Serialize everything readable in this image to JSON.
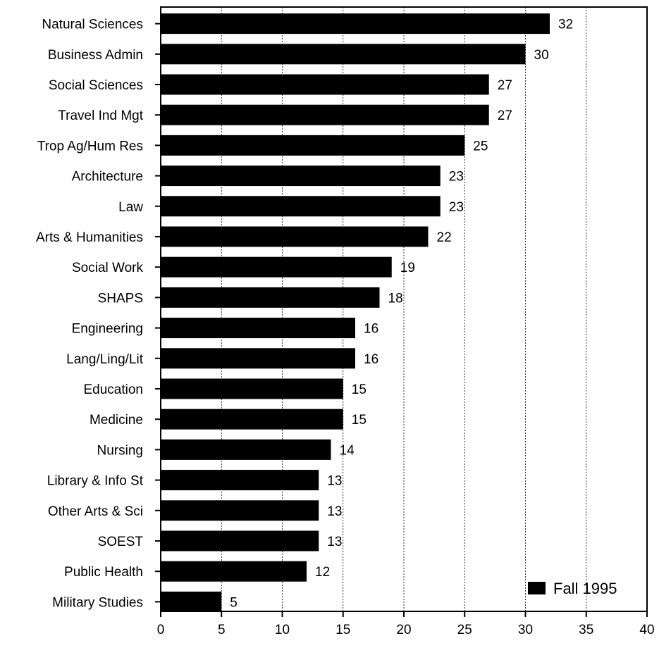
{
  "chart_data": {
    "type": "bar",
    "orientation": "horizontal",
    "categories": [
      "Natural Sciences",
      "Business Admin",
      "Social Sciences",
      "Travel Ind Mgt",
      "Trop Ag/Hum Res",
      "Architecture",
      "Law",
      "Arts & Humanities",
      "Social Work",
      "SHAPS",
      "Engineering",
      "Lang/Ling/Lit",
      "Education",
      "Medicine",
      "Nursing",
      "Library & Info St",
      "Other Arts & Sci",
      "SOEST",
      "Public Health",
      "Military Studies"
    ],
    "series": [
      {
        "name": "Fall 1995",
        "color": "#000000",
        "values": [
          32,
          30,
          27,
          27,
          25,
          23,
          23,
          22,
          19,
          18,
          16,
          16,
          15,
          15,
          14,
          13,
          13,
          13,
          12,
          5
        ],
        "value_labels": [
          "32",
          "30",
          "27",
          "27",
          "25",
          "23",
          "23",
          "22",
          "19",
          "18",
          "16",
          "16",
          "15",
          "15",
          "14",
          "13",
          "13",
          "13",
          "12",
          "5"
        ]
      }
    ],
    "xlim": [
      0,
      40
    ],
    "xticks": [
      0,
      5,
      10,
      15,
      20,
      25,
      30,
      35,
      40
    ],
    "xtick_labels": [
      "0",
      "5",
      "10",
      "15",
      "20",
      "25",
      "30",
      "35",
      "40"
    ],
    "grid": "vertical dashed",
    "legend": {
      "position": "bottom-right",
      "label": "Fall 1995"
    },
    "title": "",
    "xlabel": "",
    "ylabel": ""
  }
}
